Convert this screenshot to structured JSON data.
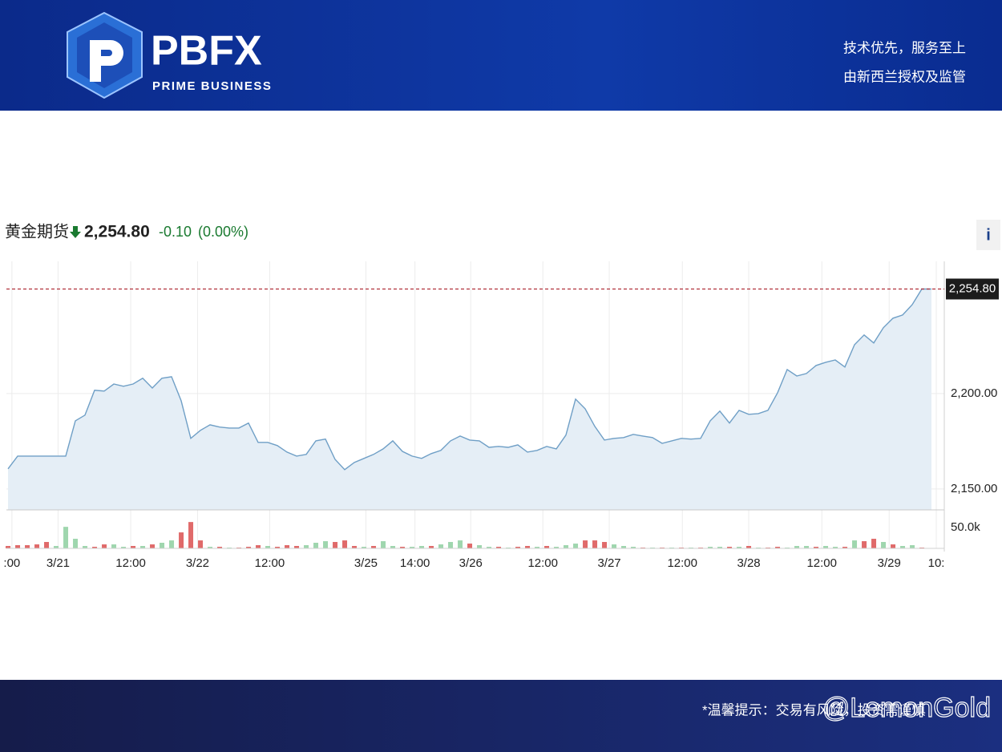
{
  "header": {
    "logo": "PBFX",
    "logo_sub": "PRIME BUSINESS",
    "slogan": "技术优先，服务至上",
    "license": "由新西兰授权及监管"
  },
  "footer": {
    "notice": "*温馨提示：交易有风险，投资需谨慎",
    "watermark": "@LemonGold"
  },
  "chart_data": {
    "type": "line",
    "title": "黄金期货",
    "last_price": {
      "value": 2254.8,
      "label": "2,254.80"
    },
    "change": "-0.10",
    "change_pct": "(0.00%)",
    "x": [
      0,
      1,
      2,
      3,
      4,
      5,
      6,
      7,
      8,
      9,
      10,
      11,
      12,
      13,
      14,
      15,
      16,
      17,
      18,
      19,
      20,
      21,
      22,
      23,
      24,
      25,
      26,
      27,
      28,
      29,
      30,
      31,
      32,
      33,
      34,
      35,
      36,
      37,
      38,
      39,
      40,
      41,
      42,
      43,
      44,
      45,
      46,
      47,
      48,
      49,
      50,
      51,
      52,
      53,
      54,
      55,
      56,
      57,
      58,
      59,
      60,
      61,
      62,
      63,
      64,
      65,
      66,
      67,
      68,
      69,
      70,
      71,
      72,
      73,
      74,
      75,
      76,
      77,
      78,
      79,
      80,
      81,
      82,
      83,
      84,
      85,
      86,
      87,
      88,
      89,
      90,
      91,
      92,
      93,
      94,
      95,
      96
    ],
    "values": [
      2160.5,
      2167.2,
      2167.2,
      2167.2,
      2167.2,
      2167.2,
      2167.2,
      2185.7,
      2188.7,
      2201.7,
      2201.3,
      2205.0,
      2203.8,
      2205.0,
      2208.0,
      2202.9,
      2208.0,
      2208.8,
      2196.2,
      2176.5,
      2180.7,
      2183.6,
      2182.4,
      2181.9,
      2181.9,
      2184.5,
      2174.4,
      2174.4,
      2172.7,
      2169.3,
      2167.2,
      2168.1,
      2175.2,
      2176.1,
      2165.5,
      2160.1,
      2163.9,
      2166.0,
      2168.1,
      2171.0,
      2175.2,
      2169.7,
      2167.2,
      2166.0,
      2168.5,
      2170.2,
      2175.2,
      2177.7,
      2175.6,
      2175.2,
      2171.8,
      2172.3,
      2171.8,
      2173.1,
      2169.3,
      2170.2,
      2172.3,
      2171.0,
      2178.2,
      2197.1,
      2192.0,
      2182.8,
      2175.6,
      2176.5,
      2176.9,
      2178.6,
      2177.7,
      2176.9,
      2173.9,
      2175.2,
      2176.5,
      2176.1,
      2176.5,
      2185.7,
      2190.8,
      2184.5,
      2191.2,
      2189.1,
      2189.5,
      2191.2,
      2200.4,
      2212.6,
      2209.2,
      2210.5,
      2214.7,
      2216.4,
      2217.6,
      2213.9,
      2225.6,
      2230.7,
      2226.5,
      2234.5,
      2239.5,
      2241.2,
      2246.6,
      2254.8,
      2254.8
    ],
    "color": "#6f9fc6",
    "fill_color": "#e5eef6",
    "last_color": "#b0303a",
    "xlim": [
      -0.17,
      97.33
    ],
    "xticks": [
      {
        "value": 0.4,
        "label": ":00"
      },
      {
        "value": 5.2,
        "label": "3/21"
      },
      {
        "value": 12.75,
        "label": "12:00"
      },
      {
        "value": 19.7,
        "label": "3/22"
      },
      {
        "value": 27.2,
        "label": "12:00"
      },
      {
        "value": 37.2,
        "label": "3/25"
      },
      {
        "value": 42.3,
        "label": "14:00"
      },
      {
        "value": 48.1,
        "label": "3/26"
      },
      {
        "value": 55.6,
        "label": "12:00"
      },
      {
        "value": 62.5,
        "label": "3/27"
      },
      {
        "value": 70.1,
        "label": "12:00"
      },
      {
        "value": 77,
        "label": "3/28"
      },
      {
        "value": 84.6,
        "label": "12:00"
      },
      {
        "value": 91.6,
        "label": "3/29"
      },
      {
        "value": 96.5,
        "label": "10:"
      }
    ],
    "ylim": [
      2139,
      2269.3
    ],
    "yticks": [
      {
        "value": 2150,
        "label": "2,150.00"
      },
      {
        "value": 2200,
        "label": "2,200.00"
      }
    ],
    "grid": true,
    "volume": {
      "ylim": [
        0,
        85000
      ],
      "yticks": [
        {
          "value": 50000,
          "label": "50.0k"
        }
      ],
      "values": [
        5800,
        7700,
        7700,
        9600,
        15400,
        5800,
        51900,
        23100,
        5800,
        3800,
        9600,
        9600,
        3800,
        5800,
        5800,
        9600,
        13500,
        19200,
        38500,
        63500,
        19200,
        3800,
        3800,
        1900,
        1900,
        3800,
        7700,
        5800,
        3800,
        7700,
        5800,
        7700,
        13500,
        17300,
        15400,
        19200,
        5800,
        3800,
        5800,
        17300,
        5800,
        3800,
        3800,
        5800,
        5800,
        9600,
        15400,
        19200,
        11500,
        7700,
        3800,
        3800,
        1900,
        3800,
        5800,
        3800,
        5800,
        3800,
        7700,
        11500,
        19200,
        19200,
        15400,
        9600,
        5800,
        3800,
        1900,
        1900,
        1900,
        1900,
        1900,
        1900,
        1900,
        3800,
        3800,
        3800,
        3800,
        5800,
        1900,
        1900,
        3800,
        1900,
        5800,
        5800,
        3800,
        5800,
        3800,
        3800,
        19200,
        17300,
        23100,
        15400,
        9600,
        5800,
        7700,
        1900,
        0
      ],
      "colors": [
        "#e06a6a",
        "#e06a6a",
        "#e06a6a",
        "#e06a6a",
        "#e06a6a",
        "#9fd6ae",
        "#9fd6ae",
        "#9fd6ae",
        "#9fd6ae",
        "#e06a6a",
        "#e06a6a",
        "#9fd6ae",
        "#9fd6ae",
        "#e06a6a",
        "#9fd6ae",
        "#e06a6a",
        "#9fd6ae",
        "#9fd6ae",
        "#e06a6a",
        "#e06a6a",
        "#e06a6a",
        "#9fd6ae",
        "#e06a6a",
        "#9fd6ae",
        "#e06a6a",
        "#e06a6a",
        "#e06a6a",
        "#9fd6ae",
        "#e06a6a",
        "#e06a6a",
        "#e06a6a",
        "#9fd6ae",
        "#9fd6ae",
        "#9fd6ae",
        "#e06a6a",
        "#e06a6a",
        "#e06a6a",
        "#9fd6ae",
        "#e06a6a",
        "#9fd6ae",
        "#9fd6ae",
        "#e06a6a",
        "#9fd6ae",
        "#9fd6ae",
        "#e06a6a",
        "#9fd6ae",
        "#9fd6ae",
        "#9fd6ae",
        "#e06a6a",
        "#9fd6ae",
        "#9fd6ae",
        "#e06a6a",
        "#9fd6ae",
        "#e06a6a",
        "#e06a6a",
        "#9fd6ae",
        "#e06a6a",
        "#9fd6ae",
        "#9fd6ae",
        "#9fd6ae",
        "#e06a6a",
        "#e06a6a",
        "#e06a6a",
        "#9fd6ae",
        "#9fd6ae",
        "#9fd6ae",
        "#e06a6a",
        "#9fd6ae",
        "#e06a6a",
        "#9fd6ae",
        "#e06a6a",
        "#9fd6ae",
        "#e06a6a",
        "#9fd6ae",
        "#9fd6ae",
        "#e06a6a",
        "#9fd6ae",
        "#e06a6a",
        "#9fd6ae",
        "#e06a6a",
        "#e06a6a",
        "#9fd6ae",
        "#9fd6ae",
        "#9fd6ae",
        "#e06a6a",
        "#9fd6ae",
        "#9fd6ae",
        "#e06a6a",
        "#9fd6ae",
        "#e06a6a",
        "#e06a6a",
        "#9fd6ae",
        "#e06a6a",
        "#9fd6ae",
        "#9fd6ae",
        "#e06a6a",
        "#9fd6ae"
      ]
    }
  }
}
